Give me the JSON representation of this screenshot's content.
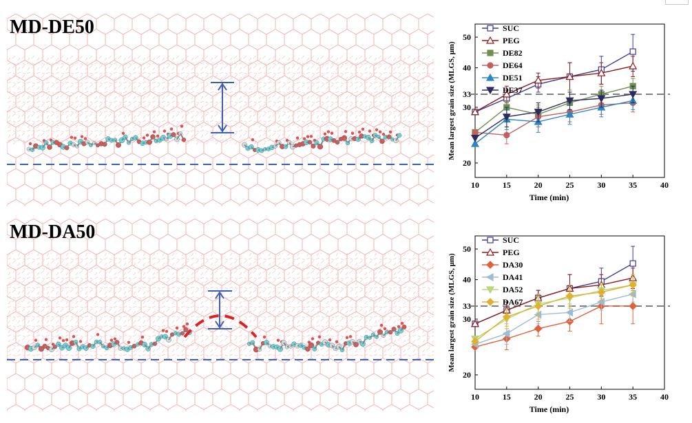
{
  "panels": [
    {
      "label": "MD-DE50"
    },
    {
      "label": "MD-DA50"
    }
  ],
  "colors": {
    "lattice": "#f2b8b8",
    "baseline": "#3a5db5",
    "arrow": "#3a5db5",
    "arc": "#e02020",
    "reference": "#808080"
  },
  "chart_data": [
    {
      "type": "line",
      "xlabel": "Time (min)",
      "ylabel": "Mean largest grain size (MLGS, μm)",
      "x": [
        10,
        15,
        20,
        25,
        30,
        35
      ],
      "xlim": [
        10,
        40
      ],
      "xticks": [
        10,
        15,
        20,
        25,
        30,
        35,
        40
      ],
      "ylim": [
        18,
        55
      ],
      "yscale": "log",
      "yticks": [
        20,
        30,
        33,
        40,
        50
      ],
      "reference_line": 33,
      "legend": "top-left",
      "series": [
        {
          "name": "SUC",
          "color": "#3b3b8f",
          "marker": "square",
          "values": [
            29,
            32,
            35.5,
            37.5,
            39.5,
            45
          ],
          "errors": [
            0,
            2,
            2,
            4,
            4,
            6
          ]
        },
        {
          "name": "PEG",
          "color": "#8b1a1a",
          "marker": "triangle-up",
          "values": [
            29,
            33,
            36.5,
            37.5,
            38.5,
            40.5
          ],
          "errors": [
            0,
            2,
            2,
            4,
            3,
            3
          ]
        },
        {
          "name": "DE82",
          "color": "#6f8f4f",
          "marker": "square",
          "values": [
            25,
            30,
            28.5,
            31,
            33,
            35
          ],
          "errors": [
            0,
            1.5,
            2,
            3,
            2,
            2
          ]
        },
        {
          "name": "DE64",
          "color": "#c06060",
          "marker": "circle",
          "values": [
            25,
            24.5,
            28,
            29,
            30.5,
            31
          ],
          "errors": [
            0,
            1.5,
            2,
            2,
            2,
            2
          ]
        },
        {
          "name": "DE51",
          "color": "#2e86c1",
          "marker": "triangle-up",
          "values": [
            23,
            27.5,
            27,
            28.5,
            30,
            31.5
          ],
          "errors": [
            0,
            2,
            2,
            2,
            2,
            2
          ]
        },
        {
          "name": "DE37",
          "color": "#2b2b5e",
          "marker": "triangle-down",
          "values": [
            24,
            28,
            29,
            31.5,
            32,
            33
          ],
          "errors": [
            0,
            2,
            2,
            2,
            2,
            2
          ]
        }
      ]
    },
    {
      "type": "line",
      "xlabel": "Time (min)",
      "ylabel": "Mean largest grain size (MLGS, μm)",
      "x": [
        10,
        15,
        20,
        25,
        30,
        35
      ],
      "xlim": [
        10,
        40
      ],
      "xticks": [
        10,
        15,
        20,
        25,
        30,
        35,
        40
      ],
      "ylim": [
        18,
        55
      ],
      "yscale": "log",
      "yticks": [
        20,
        30,
        33,
        40,
        50
      ],
      "reference_line": 33,
      "legend": "top-left",
      "series": [
        {
          "name": "SUC",
          "color": "#3b3b8f",
          "marker": "square",
          "values": [
            29,
            32,
            35,
            37.5,
            39.5,
            45
          ],
          "errors": [
            0,
            2,
            2,
            4,
            4,
            6
          ]
        },
        {
          "name": "PEG",
          "color": "#8b1a1a",
          "marker": "triangle-up",
          "values": [
            29,
            32,
            35,
            37.5,
            38.5,
            40.5
          ],
          "errors": [
            0,
            2,
            2,
            4,
            3,
            3
          ]
        },
        {
          "name": "DA30",
          "color": "#e0603a",
          "marker": "diamond",
          "values": [
            24.5,
            26,
            28,
            29.5,
            33,
            33
          ],
          "errors": [
            0,
            2,
            1.5,
            2,
            4,
            4
          ]
        },
        {
          "name": "DA41",
          "color": "#9dbcd4",
          "marker": "triangle-left",
          "values": [
            25,
            27,
            31,
            31.5,
            34,
            36
          ],
          "errors": [
            0,
            2,
            2,
            2,
            2,
            2
          ]
        },
        {
          "name": "DA52",
          "color": "#b7d77a",
          "marker": "triangle-down",
          "values": [
            26,
            30,
            33.5,
            35,
            37,
            38.5
          ],
          "errors": [
            0,
            2,
            2,
            2,
            2,
            2
          ]
        },
        {
          "name": "DA67",
          "color": "#e0b030",
          "marker": "diamond",
          "values": [
            25.5,
            30.5,
            33,
            35.5,
            36.5,
            38.5
          ],
          "errors": [
            0,
            2,
            3,
            3,
            2,
            3
          ]
        }
      ]
    }
  ]
}
